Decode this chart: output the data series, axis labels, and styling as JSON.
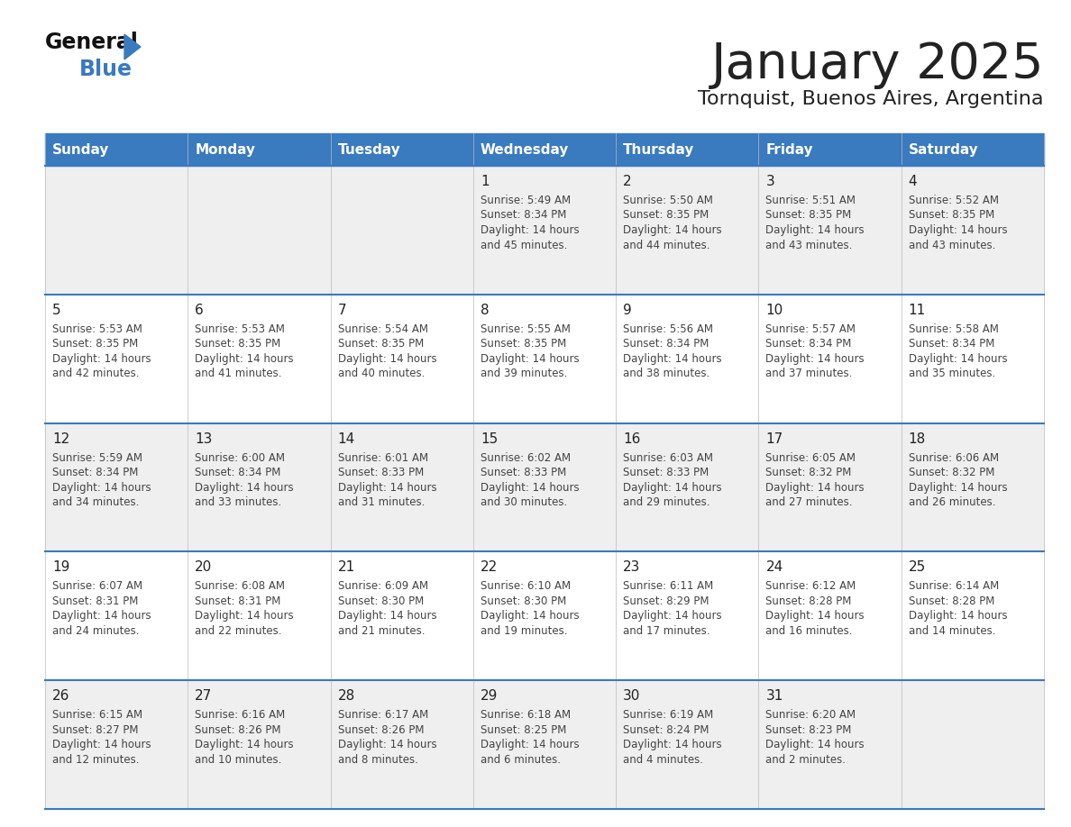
{
  "title": "January 2025",
  "subtitle": "Tornquist, Buenos Aires, Argentina",
  "days_of_week": [
    "Sunday",
    "Monday",
    "Tuesday",
    "Wednesday",
    "Thursday",
    "Friday",
    "Saturday"
  ],
  "header_bg": "#3a7abf",
  "header_text": "#ffffff",
  "row_bg_odd": "#efefef",
  "row_bg_even": "#ffffff",
  "separator_color": "#3a7abf",
  "cell_text_color": "#444444",
  "day_num_color": "#222222",
  "title_color": "#222222",
  "subtitle_color": "#222222",
  "logo_black": "#111111",
  "logo_blue": "#3a7abf",
  "calendar": [
    [
      {
        "day": null,
        "sunrise": null,
        "sunset": null,
        "daylight": null
      },
      {
        "day": null,
        "sunrise": null,
        "sunset": null,
        "daylight": null
      },
      {
        "day": null,
        "sunrise": null,
        "sunset": null,
        "daylight": null
      },
      {
        "day": "1",
        "sunrise": "5:49 AM",
        "sunset": "8:34 PM",
        "daylight": "14 hours and 45 minutes."
      },
      {
        "day": "2",
        "sunrise": "5:50 AM",
        "sunset": "8:35 PM",
        "daylight": "14 hours and 44 minutes."
      },
      {
        "day": "3",
        "sunrise": "5:51 AM",
        "sunset": "8:35 PM",
        "daylight": "14 hours and 43 minutes."
      },
      {
        "day": "4",
        "sunrise": "5:52 AM",
        "sunset": "8:35 PM",
        "daylight": "14 hours and 43 minutes."
      }
    ],
    [
      {
        "day": "5",
        "sunrise": "5:53 AM",
        "sunset": "8:35 PM",
        "daylight": "14 hours and 42 minutes."
      },
      {
        "day": "6",
        "sunrise": "5:53 AM",
        "sunset": "8:35 PM",
        "daylight": "14 hours and 41 minutes."
      },
      {
        "day": "7",
        "sunrise": "5:54 AM",
        "sunset": "8:35 PM",
        "daylight": "14 hours and 40 minutes."
      },
      {
        "day": "8",
        "sunrise": "5:55 AM",
        "sunset": "8:35 PM",
        "daylight": "14 hours and 39 minutes."
      },
      {
        "day": "9",
        "sunrise": "5:56 AM",
        "sunset": "8:34 PM",
        "daylight": "14 hours and 38 minutes."
      },
      {
        "day": "10",
        "sunrise": "5:57 AM",
        "sunset": "8:34 PM",
        "daylight": "14 hours and 37 minutes."
      },
      {
        "day": "11",
        "sunrise": "5:58 AM",
        "sunset": "8:34 PM",
        "daylight": "14 hours and 35 minutes."
      }
    ],
    [
      {
        "day": "12",
        "sunrise": "5:59 AM",
        "sunset": "8:34 PM",
        "daylight": "14 hours and 34 minutes."
      },
      {
        "day": "13",
        "sunrise": "6:00 AM",
        "sunset": "8:34 PM",
        "daylight": "14 hours and 33 minutes."
      },
      {
        "day": "14",
        "sunrise": "6:01 AM",
        "sunset": "8:33 PM",
        "daylight": "14 hours and 31 minutes."
      },
      {
        "day": "15",
        "sunrise": "6:02 AM",
        "sunset": "8:33 PM",
        "daylight": "14 hours and 30 minutes."
      },
      {
        "day": "16",
        "sunrise": "6:03 AM",
        "sunset": "8:33 PM",
        "daylight": "14 hours and 29 minutes."
      },
      {
        "day": "17",
        "sunrise": "6:05 AM",
        "sunset": "8:32 PM",
        "daylight": "14 hours and 27 minutes."
      },
      {
        "day": "18",
        "sunrise": "6:06 AM",
        "sunset": "8:32 PM",
        "daylight": "14 hours and 26 minutes."
      }
    ],
    [
      {
        "day": "19",
        "sunrise": "6:07 AM",
        "sunset": "8:31 PM",
        "daylight": "14 hours and 24 minutes."
      },
      {
        "day": "20",
        "sunrise": "6:08 AM",
        "sunset": "8:31 PM",
        "daylight": "14 hours and 22 minutes."
      },
      {
        "day": "21",
        "sunrise": "6:09 AM",
        "sunset": "8:30 PM",
        "daylight": "14 hours and 21 minutes."
      },
      {
        "day": "22",
        "sunrise": "6:10 AM",
        "sunset": "8:30 PM",
        "daylight": "14 hours and 19 minutes."
      },
      {
        "day": "23",
        "sunrise": "6:11 AM",
        "sunset": "8:29 PM",
        "daylight": "14 hours and 17 minutes."
      },
      {
        "day": "24",
        "sunrise": "6:12 AM",
        "sunset": "8:28 PM",
        "daylight": "14 hours and 16 minutes."
      },
      {
        "day": "25",
        "sunrise": "6:14 AM",
        "sunset": "8:28 PM",
        "daylight": "14 hours and 14 minutes."
      }
    ],
    [
      {
        "day": "26",
        "sunrise": "6:15 AM",
        "sunset": "8:27 PM",
        "daylight": "14 hours and 12 minutes."
      },
      {
        "day": "27",
        "sunrise": "6:16 AM",
        "sunset": "8:26 PM",
        "daylight": "14 hours and 10 minutes."
      },
      {
        "day": "28",
        "sunrise": "6:17 AM",
        "sunset": "8:26 PM",
        "daylight": "14 hours and 8 minutes."
      },
      {
        "day": "29",
        "sunrise": "6:18 AM",
        "sunset": "8:25 PM",
        "daylight": "14 hours and 6 minutes."
      },
      {
        "day": "30",
        "sunrise": "6:19 AM",
        "sunset": "8:24 PM",
        "daylight": "14 hours and 4 minutes."
      },
      {
        "day": "31",
        "sunrise": "6:20 AM",
        "sunset": "8:23 PM",
        "daylight": "14 hours and 2 minutes."
      },
      {
        "day": null,
        "sunrise": null,
        "sunset": null,
        "daylight": null
      }
    ]
  ]
}
